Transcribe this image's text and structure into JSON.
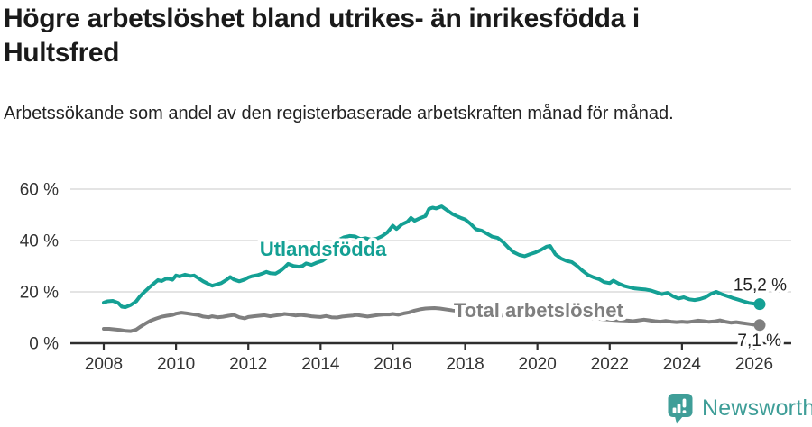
{
  "branding": {
    "name": "Newsworthy",
    "logo_icon": "bar-chart-speech-bubble"
  },
  "colors": {
    "background": "#ffffff",
    "title_text": "#1a1a1a",
    "axis_text": "#333333",
    "gridline": "#dcdcdc",
    "axis_line": "#2e2e2e",
    "utlandsfodda": "#14a094",
    "total": "#7f7f7f",
    "brand_teal": "#3f9e98"
  },
  "chart_data": {
    "type": "line",
    "title": "Högre arbetslöshet bland utrikes- än inrikesfödda i Hultsfred",
    "subtitle": "Arbetssökande som andel av den registerbaserade arbetskraften månad för månad.",
    "unit": "%",
    "grid": "horizontal",
    "x_axis": {
      "ticks": [
        2008,
        2010,
        2012,
        2014,
        2016,
        2018,
        2020,
        2022,
        2024,
        2026
      ]
    },
    "y_axis": {
      "ticks": [
        0,
        20,
        40,
        60
      ],
      "tick_suffix": " %",
      "range": [
        0,
        63
      ]
    },
    "series": [
      {
        "name": "Utlandsfödda",
        "color": "#14a094",
        "end_label": "15,2 %",
        "end_value": 15.2,
        "label_anchor": {
          "x": 2014.07,
          "y": 34.0
        },
        "points": [
          [
            2008.0,
            15.8
          ],
          [
            2008.1,
            16.3
          ],
          [
            2008.25,
            16.5
          ],
          [
            2008.4,
            15.7
          ],
          [
            2008.5,
            14.2
          ],
          [
            2008.6,
            14.0
          ],
          [
            2008.75,
            14.9
          ],
          [
            2008.9,
            16.3
          ],
          [
            2009.0,
            18.2
          ],
          [
            2009.1,
            19.6
          ],
          [
            2009.25,
            21.6
          ],
          [
            2009.4,
            23.4
          ],
          [
            2009.5,
            24.6
          ],
          [
            2009.6,
            24.2
          ],
          [
            2009.75,
            25.3
          ],
          [
            2009.9,
            24.7
          ],
          [
            2010.0,
            26.4
          ],
          [
            2010.1,
            26.0
          ],
          [
            2010.25,
            26.7
          ],
          [
            2010.4,
            26.2
          ],
          [
            2010.5,
            26.4
          ],
          [
            2010.6,
            25.5
          ],
          [
            2010.75,
            24.1
          ],
          [
            2010.9,
            23.0
          ],
          [
            2011.0,
            22.4
          ],
          [
            2011.1,
            22.8
          ],
          [
            2011.25,
            23.4
          ],
          [
            2011.4,
            24.7
          ],
          [
            2011.5,
            25.8
          ],
          [
            2011.6,
            24.8
          ],
          [
            2011.75,
            24.1
          ],
          [
            2011.9,
            24.8
          ],
          [
            2012.0,
            25.6
          ],
          [
            2012.1,
            26.1
          ],
          [
            2012.25,
            26.5
          ],
          [
            2012.4,
            27.2
          ],
          [
            2012.5,
            27.8
          ],
          [
            2012.6,
            27.3
          ],
          [
            2012.75,
            27.1
          ],
          [
            2012.9,
            28.3
          ],
          [
            2013.0,
            29.5
          ],
          [
            2013.1,
            30.9
          ],
          [
            2013.25,
            30.1
          ],
          [
            2013.4,
            29.8
          ],
          [
            2013.5,
            30.1
          ],
          [
            2013.6,
            31.1
          ],
          [
            2013.75,
            30.5
          ],
          [
            2013.9,
            31.4
          ],
          [
            2014.05,
            32.1
          ],
          [
            2014.2,
            33.6
          ],
          [
            2014.35,
            36.2
          ],
          [
            2014.5,
            40.2
          ],
          [
            2014.65,
            41.3
          ],
          [
            2014.8,
            41.8
          ],
          [
            2014.95,
            41.6
          ],
          [
            2015.1,
            40.6
          ],
          [
            2015.25,
            40.9
          ],
          [
            2015.4,
            40.3
          ],
          [
            2015.55,
            40.7
          ],
          [
            2015.7,
            41.7
          ],
          [
            2015.85,
            43.2
          ],
          [
            2016.0,
            45.8
          ],
          [
            2016.1,
            44.5
          ],
          [
            2016.25,
            46.3
          ],
          [
            2016.4,
            47.3
          ],
          [
            2016.5,
            48.8
          ],
          [
            2016.6,
            47.7
          ],
          [
            2016.75,
            48.7
          ],
          [
            2016.9,
            49.5
          ],
          [
            2017.0,
            52.3
          ],
          [
            2017.1,
            52.8
          ],
          [
            2017.2,
            52.5
          ],
          [
            2017.35,
            53.3
          ],
          [
            2017.5,
            51.8
          ],
          [
            2017.65,
            50.3
          ],
          [
            2017.8,
            49.3
          ],
          [
            2017.9,
            48.7
          ],
          [
            2018.0,
            48.2
          ],
          [
            2018.15,
            46.5
          ],
          [
            2018.3,
            44.4
          ],
          [
            2018.45,
            43.9
          ],
          [
            2018.6,
            42.7
          ],
          [
            2018.75,
            41.5
          ],
          [
            2018.9,
            41.0
          ],
          [
            2019.05,
            39.4
          ],
          [
            2019.2,
            37.2
          ],
          [
            2019.35,
            35.4
          ],
          [
            2019.5,
            34.4
          ],
          [
            2019.65,
            33.9
          ],
          [
            2019.8,
            34.7
          ],
          [
            2019.95,
            35.4
          ],
          [
            2020.1,
            36.4
          ],
          [
            2020.25,
            37.6
          ],
          [
            2020.35,
            37.9
          ],
          [
            2020.5,
            34.6
          ],
          [
            2020.65,
            33.0
          ],
          [
            2020.8,
            32.1
          ],
          [
            2020.95,
            31.6
          ],
          [
            2021.1,
            30.1
          ],
          [
            2021.25,
            28.2
          ],
          [
            2021.4,
            26.6
          ],
          [
            2021.55,
            25.7
          ],
          [
            2021.7,
            25.0
          ],
          [
            2021.85,
            23.8
          ],
          [
            2022.0,
            23.4
          ],
          [
            2022.1,
            24.4
          ],
          [
            2022.25,
            23.2
          ],
          [
            2022.4,
            22.3
          ],
          [
            2022.55,
            21.8
          ],
          [
            2022.7,
            21.3
          ],
          [
            2022.85,
            21.1
          ],
          [
            2023.0,
            20.9
          ],
          [
            2023.15,
            20.5
          ],
          [
            2023.3,
            19.8
          ],
          [
            2023.45,
            19.1
          ],
          [
            2023.6,
            19.6
          ],
          [
            2023.75,
            18.3
          ],
          [
            2023.9,
            17.4
          ],
          [
            2024.05,
            17.9
          ],
          [
            2024.2,
            17.1
          ],
          [
            2024.35,
            16.8
          ],
          [
            2024.5,
            17.2
          ],
          [
            2024.65,
            17.9
          ],
          [
            2024.8,
            19.2
          ],
          [
            2024.95,
            20.0
          ],
          [
            2025.1,
            19.1
          ],
          [
            2025.25,
            18.4
          ],
          [
            2025.4,
            17.6
          ],
          [
            2025.55,
            17.0
          ],
          [
            2025.7,
            16.3
          ],
          [
            2025.85,
            15.7
          ],
          [
            2026.0,
            15.4
          ],
          [
            2026.15,
            15.2
          ]
        ]
      },
      {
        "name": "Total arbetslöshet",
        "color": "#7f7f7f",
        "end_label": "7,1 %",
        "end_value": 7.1,
        "label_anchor": {
          "x": 2020.03,
          "y": 10.25
        },
        "points": [
          [
            2008.0,
            5.6
          ],
          [
            2008.15,
            5.6
          ],
          [
            2008.3,
            5.4
          ],
          [
            2008.45,
            5.2
          ],
          [
            2008.6,
            4.8
          ],
          [
            2008.75,
            4.7
          ],
          [
            2008.9,
            5.3
          ],
          [
            2009.0,
            6.3
          ],
          [
            2009.15,
            7.6
          ],
          [
            2009.3,
            8.8
          ],
          [
            2009.45,
            9.6
          ],
          [
            2009.6,
            10.3
          ],
          [
            2009.75,
            10.7
          ],
          [
            2009.9,
            11.0
          ],
          [
            2010.0,
            11.5
          ],
          [
            2010.15,
            11.9
          ],
          [
            2010.3,
            11.6
          ],
          [
            2010.45,
            11.3
          ],
          [
            2010.6,
            11.0
          ],
          [
            2010.75,
            10.4
          ],
          [
            2010.9,
            10.1
          ],
          [
            2011.0,
            10.5
          ],
          [
            2011.15,
            10.1
          ],
          [
            2011.3,
            10.3
          ],
          [
            2011.45,
            10.7
          ],
          [
            2011.6,
            11.0
          ],
          [
            2011.75,
            10.1
          ],
          [
            2011.9,
            9.7
          ],
          [
            2012.0,
            10.2
          ],
          [
            2012.15,
            10.5
          ],
          [
            2012.3,
            10.7
          ],
          [
            2012.45,
            10.9
          ],
          [
            2012.6,
            10.5
          ],
          [
            2012.75,
            10.8
          ],
          [
            2012.9,
            11.1
          ],
          [
            2013.0,
            11.4
          ],
          [
            2013.15,
            11.2
          ],
          [
            2013.3,
            10.8
          ],
          [
            2013.45,
            11.0
          ],
          [
            2013.6,
            10.8
          ],
          [
            2013.75,
            10.5
          ],
          [
            2013.9,
            10.3
          ],
          [
            2014.0,
            10.2
          ],
          [
            2014.15,
            10.6
          ],
          [
            2014.3,
            10.1
          ],
          [
            2014.45,
            10.0
          ],
          [
            2014.6,
            10.4
          ],
          [
            2014.75,
            10.6
          ],
          [
            2014.9,
            10.8
          ],
          [
            2015.0,
            11.0
          ],
          [
            2015.15,
            10.7
          ],
          [
            2015.3,
            10.4
          ],
          [
            2015.45,
            10.7
          ],
          [
            2015.6,
            11.0
          ],
          [
            2015.75,
            11.2
          ],
          [
            2015.9,
            11.2
          ],
          [
            2016.0,
            11.4
          ],
          [
            2016.15,
            11.1
          ],
          [
            2016.3,
            11.6
          ],
          [
            2016.45,
            12.0
          ],
          [
            2016.6,
            12.7
          ],
          [
            2016.75,
            13.2
          ],
          [
            2016.9,
            13.5
          ],
          [
            2017.0,
            13.6
          ],
          [
            2017.15,
            13.7
          ],
          [
            2017.3,
            13.5
          ],
          [
            2017.5,
            13.1
          ],
          [
            2017.7,
            12.7
          ],
          [
            2017.9,
            12.4
          ],
          [
            2018.1,
            12.0
          ],
          [
            2018.3,
            11.7
          ],
          [
            2018.5,
            11.4
          ],
          [
            2018.7,
            11.1
          ],
          [
            2018.9,
            10.9
          ],
          [
            2019.1,
            10.7
          ],
          [
            2019.3,
            10.5
          ],
          [
            2019.5,
            10.6
          ],
          [
            2019.7,
            10.9
          ],
          [
            2019.9,
            11.4
          ],
          [
            2020.1,
            11.9
          ],
          [
            2020.3,
            12.1
          ],
          [
            2020.5,
            11.8
          ],
          [
            2020.7,
            11.4
          ],
          [
            2020.9,
            11.0
          ],
          [
            2021.1,
            10.5
          ],
          [
            2021.3,
            10.1
          ],
          [
            2021.5,
            9.8
          ],
          [
            2021.7,
            9.5
          ],
          [
            2021.9,
            9.3
          ],
          [
            2022.1,
            9.1
          ],
          [
            2022.3,
            8.9
          ],
          [
            2022.5,
            8.8
          ],
          [
            2022.65,
            8.6
          ],
          [
            2022.8,
            8.9
          ],
          [
            2022.95,
            9.2
          ],
          [
            2023.1,
            8.9
          ],
          [
            2023.25,
            8.6
          ],
          [
            2023.4,
            8.4
          ],
          [
            2023.55,
            8.7
          ],
          [
            2023.7,
            8.4
          ],
          [
            2023.85,
            8.2
          ],
          [
            2024.0,
            8.4
          ],
          [
            2024.15,
            8.2
          ],
          [
            2024.3,
            8.5
          ],
          [
            2024.45,
            8.8
          ],
          [
            2024.6,
            8.6
          ],
          [
            2024.75,
            8.3
          ],
          [
            2024.9,
            8.5
          ],
          [
            2025.05,
            8.9
          ],
          [
            2025.2,
            8.4
          ],
          [
            2025.35,
            8.0
          ],
          [
            2025.5,
            8.2
          ],
          [
            2025.65,
            7.9
          ],
          [
            2025.8,
            7.6
          ],
          [
            2025.95,
            7.3
          ],
          [
            2026.15,
            7.1
          ]
        ]
      }
    ]
  }
}
